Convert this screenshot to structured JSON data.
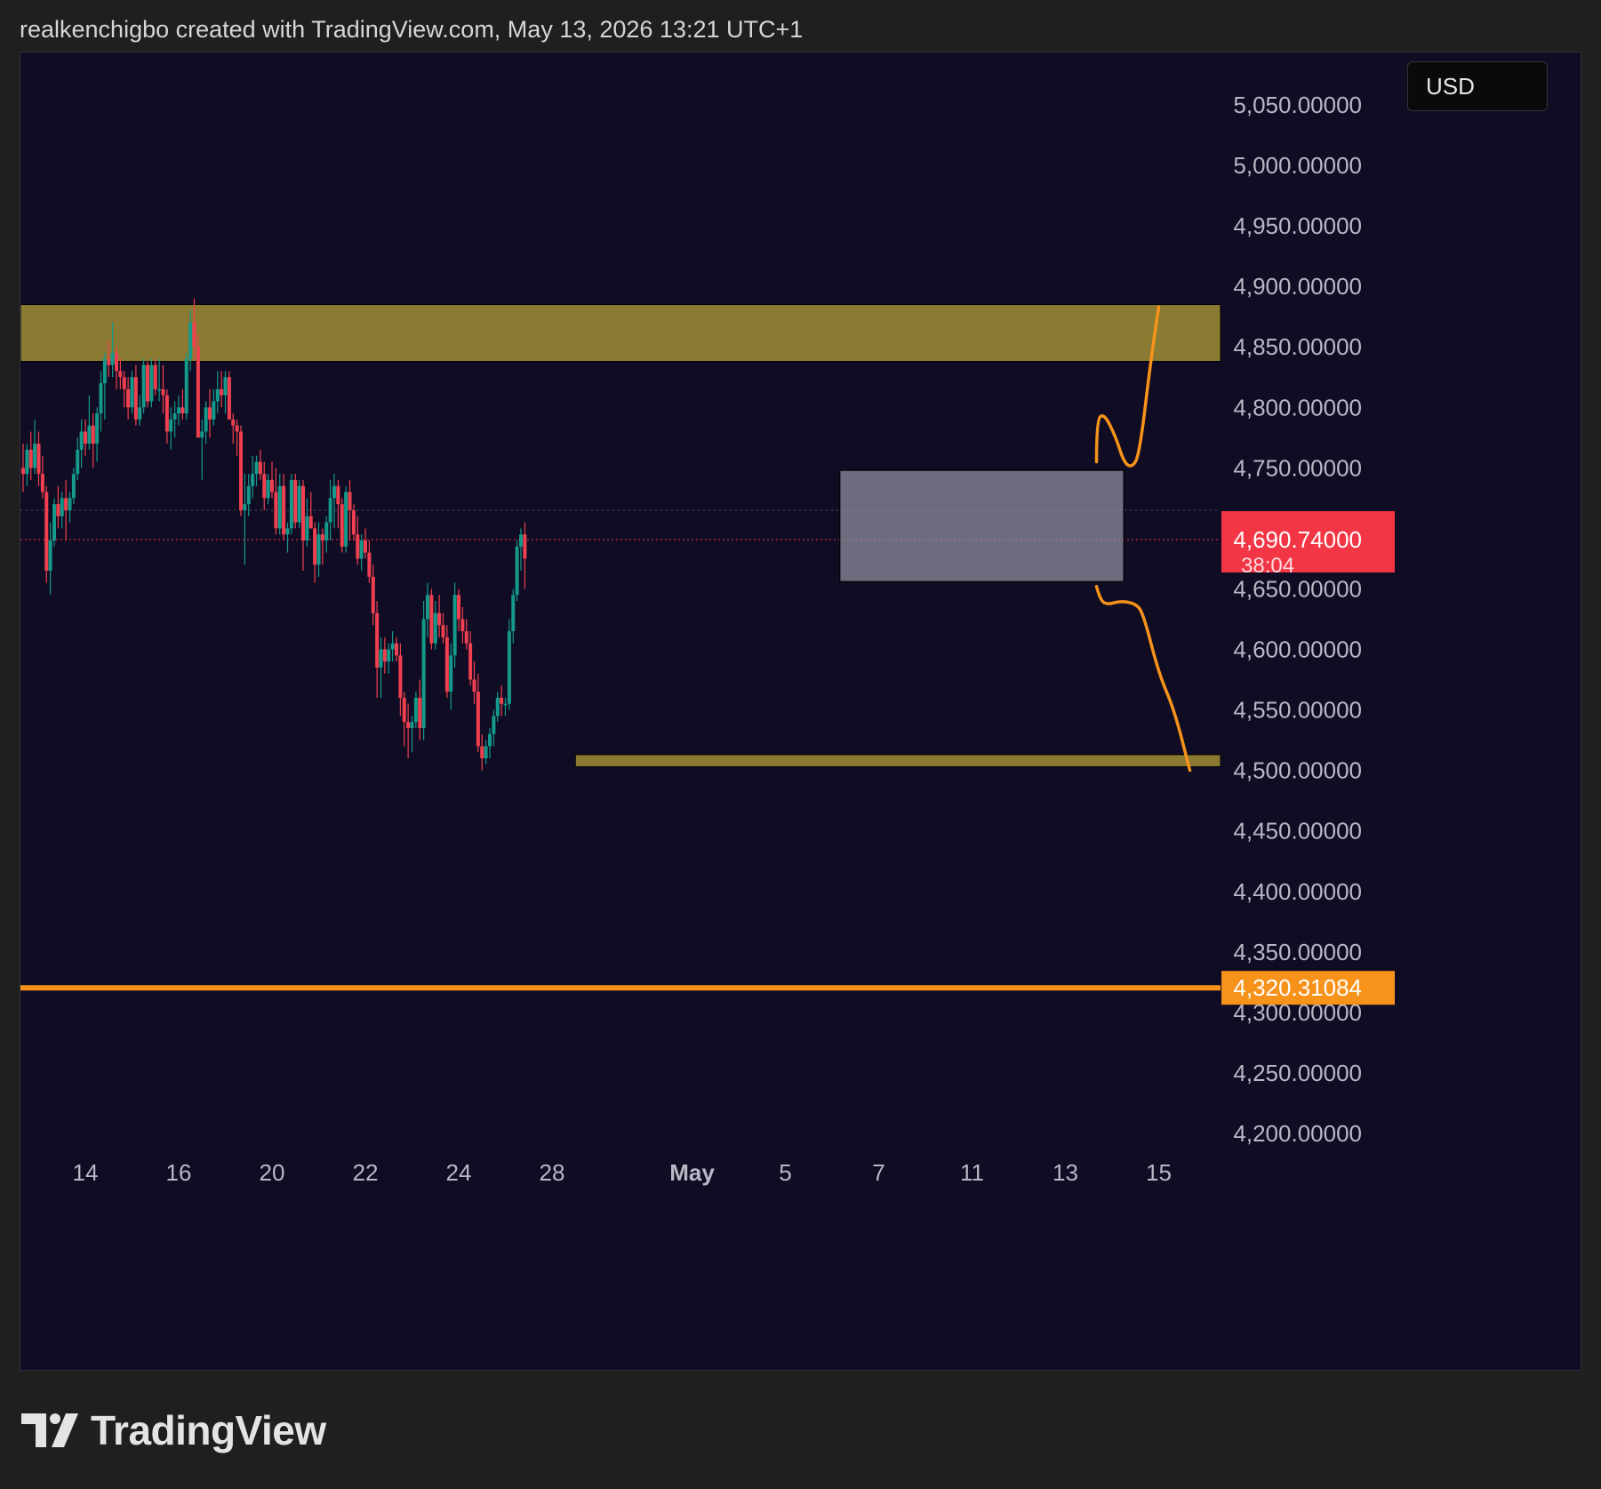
{
  "header": {
    "text": "realkenchigbo created with TradingView.com, May 13, 2026 13:21 UTC+1"
  },
  "currency": "USD",
  "footer": {
    "brand": "TradingView",
    "logo_icon": "tradingview-logo-icon"
  },
  "colors": {
    "background": "#0f0c24",
    "bull": "#14998a",
    "bear": "#f0404f",
    "resistance_zone": "#8a7a32",
    "support_zone": "#8a7a32",
    "range_box": "#9b9aaa",
    "projection": "#f7931a",
    "level_line": "#f7931a",
    "price_label": "#f23645"
  },
  "chart_data": {
    "type": "candlestick",
    "y_range": [
      4175,
      5080
    ],
    "y_ticks": [
      "4,200.00000",
      "4,250.00000",
      "4,300.00000",
      "4,350.00000",
      "4,400.00000",
      "4,450.00000",
      "4,500.00000",
      "4,550.00000",
      "4,600.00000",
      "4,650.00000",
      "4,700.00000",
      "4,750.00000",
      "4,800.00000",
      "4,850.00000",
      "4,900.00000",
      "4,950.00000",
      "5,000.00000",
      "5,050.00000"
    ],
    "x_ticks": [
      {
        "label": "14",
        "bar": 16
      },
      {
        "label": "16",
        "bar": 40
      },
      {
        "label": "20",
        "bar": 64
      },
      {
        "label": "22",
        "bar": 88
      },
      {
        "label": "24",
        "bar": 112
      },
      {
        "label": "28",
        "bar": 136
      },
      {
        "label": "May",
        "bar": 172
      },
      {
        "label": "5",
        "bar": 196
      },
      {
        "label": "7",
        "bar": 220
      },
      {
        "label": "11",
        "bar": 244
      },
      {
        "label": "13",
        "bar": 268
      },
      {
        "label": "15",
        "bar": 292
      }
    ],
    "current_price": {
      "label": "4,690.74000",
      "countdown": "38:04",
      "value": 4690.74
    },
    "level_line": {
      "label": "4,320.31084",
      "value": 4320.31084
    },
    "prev_close_value": 4715,
    "resistance_zone": {
      "top": 4885,
      "bottom": 4838
    },
    "support_zone": {
      "top": 4513,
      "bottom": 4503,
      "from_bar": 142
    },
    "range_box": {
      "top": 4748,
      "bottom": 4656,
      "from_bar": 210,
      "to_bar": 283
    },
    "projections": [
      {
        "name": "bullish-path",
        "points": [
          [
            276,
            4755
          ],
          [
            276,
            4790
          ],
          [
            278,
            4795
          ],
          [
            281,
            4775
          ],
          [
            283,
            4755
          ],
          [
            285,
            4750
          ],
          [
            287,
            4760
          ],
          [
            290,
            4840
          ],
          [
            292,
            4883
          ]
        ]
      },
      {
        "name": "bearish-path",
        "points": [
          [
            276,
            4652
          ],
          [
            277,
            4640
          ],
          [
            279,
            4637
          ],
          [
            282,
            4640
          ],
          [
            286,
            4638
          ],
          [
            288,
            4630
          ],
          [
            292,
            4580
          ],
          [
            296,
            4550
          ],
          [
            300,
            4500
          ]
        ]
      }
    ],
    "candles": [
      [
        4750,
        4770,
        4730,
        4745
      ],
      [
        4745,
        4770,
        4735,
        4765
      ],
      [
        4765,
        4780,
        4740,
        4750
      ],
      [
        4750,
        4790,
        4745,
        4770
      ],
      [
        4770,
        4780,
        4735,
        4745
      ],
      [
        4745,
        4760,
        4725,
        4730
      ],
      [
        4730,
        4735,
        4655,
        4665
      ],
      [
        4665,
        4705,
        4645,
        4690
      ],
      [
        4690,
        4725,
        4685,
        4720
      ],
      [
        4720,
        4735,
        4700,
        4710
      ],
      [
        4710,
        4730,
        4700,
        4725
      ],
      [
        4725,
        4740,
        4690,
        4715
      ],
      [
        4715,
        4730,
        4705,
        4725
      ],
      [
        4725,
        4750,
        4720,
        4745
      ],
      [
        4745,
        4775,
        4740,
        4765
      ],
      [
        4765,
        4790,
        4750,
        4780
      ],
      [
        4780,
        4790,
        4760,
        4770
      ],
      [
        4770,
        4810,
        4765,
        4785
      ],
      [
        4785,
        4795,
        4750,
        4770
      ],
      [
        4770,
        4800,
        4755,
        4795
      ],
      [
        4795,
        4830,
        4780,
        4820
      ],
      [
        4820,
        4845,
        4790,
        4840
      ],
      [
        4840,
        4855,
        4825,
        4835
      ],
      [
        4835,
        4870,
        4825,
        4845
      ],
      [
        4845,
        4850,
        4815,
        4830
      ],
      [
        4830,
        4840,
        4815,
        4825
      ],
      [
        4825,
        4830,
        4800,
        4815
      ],
      [
        4815,
        4825,
        4790,
        4800
      ],
      [
        4800,
        4830,
        4795,
        4825
      ],
      [
        4825,
        4835,
        4785,
        4790
      ],
      [
        4790,
        4810,
        4785,
        4800
      ],
      [
        4800,
        4840,
        4795,
        4835
      ],
      [
        4835,
        4838,
        4800,
        4805
      ],
      [
        4805,
        4840,
        4800,
        4835
      ],
      [
        4835,
        4840,
        4810,
        4815
      ],
      [
        4815,
        4840,
        4805,
        4815
      ],
      [
        4815,
        4835,
        4795,
        4810
      ],
      [
        4810,
        4815,
        4770,
        4780
      ],
      [
        4780,
        4800,
        4765,
        4790
      ],
      [
        4790,
        4805,
        4775,
        4795
      ],
      [
        4795,
        4810,
        4785,
        4800
      ],
      [
        4800,
        4815,
        4790,
        4795
      ],
      [
        4795,
        4845,
        4790,
        4840
      ],
      [
        4840,
        4880,
        4830,
        4870
      ],
      [
        4870,
        4890,
        4840,
        4850
      ],
      [
        4850,
        4860,
        4780,
        4775
      ],
      [
        4775,
        4790,
        4740,
        4780
      ],
      [
        4780,
        4805,
        4770,
        4800
      ],
      [
        4800,
        4815,
        4775,
        4790
      ],
      [
        4790,
        4815,
        4785,
        4805
      ],
      [
        4805,
        4830,
        4795,
        4815
      ],
      [
        4815,
        4830,
        4800,
        4810
      ],
      [
        4810,
        4830,
        4795,
        4825
      ],
      [
        4825,
        4830,
        4795,
        4790
      ],
      [
        4790,
        4795,
        4770,
        4785
      ],
      [
        4785,
        4790,
        4760,
        4780
      ],
      [
        4780,
        4785,
        4710,
        4715
      ],
      [
        4715,
        4745,
        4670,
        4720
      ],
      [
        4720,
        4745,
        4710,
        4735
      ],
      [
        4735,
        4760,
        4725,
        4745
      ],
      [
        4745,
        4760,
        4735,
        4755
      ],
      [
        4755,
        4765,
        4740,
        4745
      ],
      [
        4745,
        4755,
        4715,
        4725
      ],
      [
        4725,
        4745,
        4720,
        4740
      ],
      [
        4740,
        4755,
        4725,
        4730
      ],
      [
        4730,
        4750,
        4695,
        4700
      ],
      [
        4700,
        4745,
        4695,
        4735
      ],
      [
        4735,
        4745,
        4690,
        4695
      ],
      [
        4695,
        4705,
        4680,
        4700
      ],
      [
        4700,
        4745,
        4695,
        4740
      ],
      [
        4740,
        4745,
        4700,
        4705
      ],
      [
        4705,
        4740,
        4700,
        4735
      ],
      [
        4735,
        4740,
        4665,
        4690
      ],
      [
        4690,
        4725,
        4685,
        4710
      ],
      [
        4710,
        4730,
        4700,
        4700
      ],
      [
        4700,
        4705,
        4655,
        4670
      ],
      [
        4670,
        4705,
        4660,
        4695
      ],
      [
        4695,
        4700,
        4670,
        4690
      ],
      [
        4690,
        4710,
        4680,
        4705
      ],
      [
        4705,
        4740,
        4690,
        4725
      ],
      [
        4725,
        4745,
        4700,
        4735
      ],
      [
        4735,
        4740,
        4700,
        4720
      ],
      [
        4720,
        4725,
        4680,
        4685
      ],
      [
        4685,
        4735,
        4680,
        4730
      ],
      [
        4730,
        4740,
        4690,
        4715
      ],
      [
        4715,
        4720,
        4690,
        4695
      ],
      [
        4695,
        4710,
        4670,
        4675
      ],
      [
        4675,
        4695,
        4665,
        4690
      ],
      [
        4690,
        4700,
        4675,
        4680
      ],
      [
        4680,
        4690,
        4655,
        4660
      ],
      [
        4660,
        4670,
        4620,
        4630
      ],
      [
        4630,
        4640,
        4560,
        4585
      ],
      [
        4585,
        4610,
        4560,
        4600
      ],
      [
        4600,
        4610,
        4580,
        4590
      ],
      [
        4590,
        4605,
        4580,
        4600
      ],
      [
        4600,
        4615,
        4590,
        4605
      ],
      [
        4605,
        4610,
        4590,
        4595
      ],
      [
        4595,
        4605,
        4545,
        4560
      ],
      [
        4560,
        4565,
        4520,
        4540
      ],
      [
        4540,
        4555,
        4510,
        4535
      ],
      [
        4535,
        4545,
        4515,
        4540
      ],
      [
        4540,
        4565,
        4535,
        4560
      ],
      [
        4560,
        4575,
        4525,
        4535
      ],
      [
        4535,
        4640,
        4525,
        4625
      ],
      [
        4625,
        4655,
        4610,
        4645
      ],
      [
        4645,
        4650,
        4600,
        4605
      ],
      [
        4605,
        4640,
        4600,
        4630
      ],
      [
        4630,
        4645,
        4610,
        4620
      ],
      [
        4620,
        4630,
        4605,
        4610
      ],
      [
        4610,
        4620,
        4560,
        4565
      ],
      [
        4565,
        4605,
        4550,
        4595
      ],
      [
        4595,
        4655,
        4585,
        4645
      ],
      [
        4645,
        4650,
        4615,
        4625
      ],
      [
        4625,
        4635,
        4605,
        4615
      ],
      [
        4615,
        4625,
        4600,
        4605
      ],
      [
        4605,
        4615,
        4570,
        4575
      ],
      [
        4575,
        4590,
        4555,
        4565
      ],
      [
        4565,
        4580,
        4515,
        4520
      ],
      [
        4520,
        4530,
        4500,
        4510
      ],
      [
        4510,
        4525,
        4505,
        4520
      ],
      [
        4520,
        4535,
        4510,
        4530
      ],
      [
        4530,
        4550,
        4520,
        4545
      ],
      [
        4545,
        4565,
        4540,
        4560
      ],
      [
        4560,
        4570,
        4545,
        4555
      ],
      [
        4555,
        4560,
        4545,
        4555
      ],
      [
        4555,
        4625,
        4550,
        4615
      ],
      [
        4615,
        4650,
        4605,
        4645
      ],
      [
        4645,
        4690,
        4640,
        4685
      ],
      [
        4685,
        4700,
        4665,
        4695
      ],
      [
        4695,
        4705,
        4650,
        4675
      ]
    ]
  }
}
